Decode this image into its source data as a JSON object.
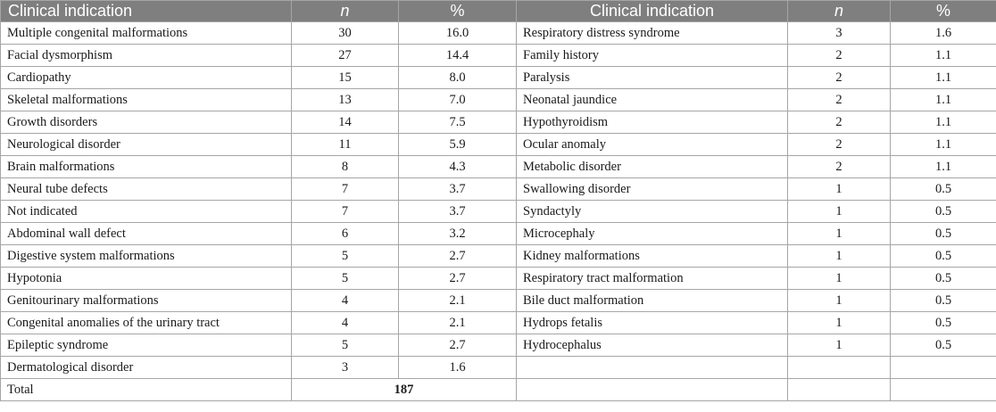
{
  "headers": [
    "Clinical indication",
    "n",
    "%",
    "Clinical indication",
    "n",
    "%"
  ],
  "rows": [
    [
      "Multiple congenital malformations",
      "30",
      "16.0",
      "Respiratory distress syndrome",
      "3",
      "1.6"
    ],
    [
      "Facial dysmorphism",
      "27",
      "14.4",
      "Family history",
      "2",
      "1.1"
    ],
    [
      "Cardiopathy",
      "15",
      "8.0",
      "Paralysis",
      "2",
      "1.1"
    ],
    [
      "Skeletal malformations",
      "13",
      "7.0",
      "Neonatal jaundice",
      "2",
      "1.1"
    ],
    [
      "Growth disorders",
      "14",
      "7.5",
      "Hypothyroidism",
      "2",
      "1.1"
    ],
    [
      "Neurological disorder",
      "11",
      "5.9",
      "Ocular anomaly",
      "2",
      "1.1"
    ],
    [
      "Brain malformations",
      "8",
      "4.3",
      "Metabolic disorder",
      "2",
      "1.1"
    ],
    [
      "Neural tube defects",
      "7",
      "3.7",
      "Swallowing disorder",
      "1",
      "0.5"
    ],
    [
      "Not indicated",
      "7",
      "3.7",
      "Syndactyly",
      "1",
      "0.5"
    ],
    [
      "Abdominal wall defect",
      "6",
      "3.2",
      "Microcephaly",
      "1",
      "0.5"
    ],
    [
      "Digestive system malformations",
      "5",
      "2.7",
      "Kidney malformations",
      "1",
      "0.5"
    ],
    [
      "Hypotonia",
      "5",
      "2.7",
      "Respiratory tract malformation",
      "1",
      "0.5"
    ],
    [
      "Genitourinary malformations",
      "4",
      "2.1",
      "Bile duct malformation",
      "1",
      "0.5"
    ],
    [
      "Congenital anomalies of the urinary tract",
      "4",
      "2.1",
      "Hydrops fetalis",
      "1",
      "0.5"
    ],
    [
      "Epileptic syndrome",
      "5",
      "2.7",
      "Hydrocephalus",
      "1",
      "0.5"
    ],
    [
      "Dermatological disorder",
      "3",
      "1.6",
      "",
      "",
      ""
    ]
  ],
  "total": {
    "label": "Total",
    "value": "187"
  }
}
